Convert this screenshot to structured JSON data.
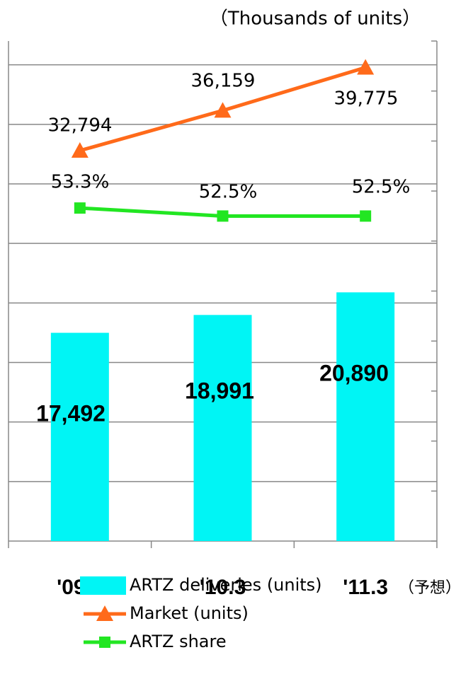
{
  "chart_data": {
    "type": "bar",
    "unit_label": "（Thousands of units）",
    "categories": [
      "'09.3",
      "'10.3",
      "'11.3"
    ],
    "category_note": "（予想）",
    "ylim": [
      0,
      42000
    ],
    "yticks": [
      0,
      5000,
      10000,
      15000,
      20000,
      25000,
      30000,
      35000,
      40000
    ],
    "y2lim": [
      20,
      70
    ],
    "y2ticks": [
      20,
      25,
      30,
      35,
      40,
      45,
      50,
      55,
      60,
      65,
      70
    ],
    "grid": true,
    "series": [
      {
        "name": "ARTZ deliveries (units)",
        "type": "bar",
        "color": "#00f5f5",
        "values": [
          17492,
          18991,
          20890
        ],
        "value_labels": [
          "17,492",
          "18,991",
          "20,890"
        ]
      },
      {
        "name": "Market (units)",
        "type": "line",
        "marker": "triangle",
        "color": "#ff6a1a",
        "values": [
          32794,
          36159,
          39775
        ],
        "value_labels": [
          "32,794",
          "36,159",
          "39,775"
        ]
      },
      {
        "name": "ARTZ share",
        "type": "line",
        "marker": "square",
        "color": "#22e622",
        "axis": "y2",
        "values": [
          53.3,
          52.5,
          52.5
        ],
        "value_labels": [
          "53.3%",
          "52.5%",
          "52.5%"
        ]
      }
    ]
  }
}
